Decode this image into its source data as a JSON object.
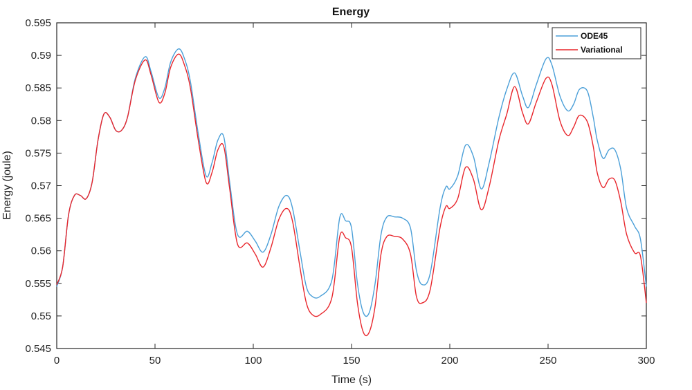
{
  "chart_data": {
    "type": "line",
    "title": "Energy",
    "xlabel": "Time (s)",
    "ylabel": "Energy (joule)",
    "xlim": [
      0,
      300
    ],
    "ylim": [
      0.545,
      0.595
    ],
    "xticks": [
      "0",
      "50",
      "100",
      "150",
      "200",
      "250",
      "300"
    ],
    "yticks": [
      "0.545",
      "0.55",
      "0.555",
      "0.56",
      "0.565",
      "0.57",
      "0.575",
      "0.58",
      "0.585",
      "0.59",
      "0.595"
    ],
    "grid": false,
    "legend_position": "top-right",
    "series": [
      {
        "name": "ODE45",
        "color": "#4a9fd8",
        "x": [
          0,
          3,
          6,
          9,
          12,
          15,
          18,
          21,
          24,
          27,
          30,
          33,
          36,
          40,
          45,
          48,
          52,
          55,
          58,
          62,
          65,
          68,
          72,
          76,
          79,
          82,
          85,
          88,
          92,
          97,
          101,
          105,
          109,
          113,
          117,
          120,
          124,
          127,
          130,
          134,
          140,
          144,
          147,
          150,
          153,
          156,
          159,
          162,
          165,
          168,
          172,
          176,
          180,
          183,
          186,
          190,
          195,
          198,
          200,
          204,
          208,
          212,
          216,
          220,
          225,
          229,
          233,
          237,
          240,
          244,
          249,
          252,
          256,
          260,
          263,
          266,
          270,
          273,
          275,
          278,
          281,
          284,
          287,
          290,
          294,
          297,
          300
        ],
        "y": [
          0.5545,
          0.5575,
          0.5655,
          0.5685,
          0.5685,
          0.568,
          0.5705,
          0.577,
          0.581,
          0.5805,
          0.5785,
          0.5785,
          0.5805,
          0.5865,
          0.5898,
          0.5875,
          0.5835,
          0.585,
          0.589,
          0.591,
          0.5895,
          0.586,
          0.578,
          0.5715,
          0.5735,
          0.577,
          0.5775,
          0.5705,
          0.5625,
          0.563,
          0.5615,
          0.5598,
          0.5625,
          0.5668,
          0.5685,
          0.5665,
          0.5595,
          0.5545,
          0.553,
          0.553,
          0.5555,
          0.5651,
          0.5646,
          0.5635,
          0.555,
          0.5505,
          0.5505,
          0.555,
          0.5625,
          0.5652,
          0.5652,
          0.565,
          0.5635,
          0.557,
          0.5548,
          0.5565,
          0.5665,
          0.5698,
          0.5695,
          0.5715,
          0.5762,
          0.5745,
          0.5695,
          0.5735,
          0.5805,
          0.5848,
          0.5873,
          0.5838,
          0.582,
          0.5855,
          0.5895,
          0.5885,
          0.5838,
          0.5815,
          0.5825,
          0.5848,
          0.5845,
          0.5805,
          0.577,
          0.5742,
          0.5755,
          0.5755,
          0.5725,
          0.5665,
          0.5638,
          0.5618,
          0.5545
        ]
      },
      {
        "name": "Variational",
        "color": "#e8262c",
        "x": [
          0,
          3,
          6,
          9,
          12,
          15,
          18,
          21,
          24,
          27,
          30,
          33,
          36,
          40,
          45,
          48,
          52,
          55,
          58,
          62,
          65,
          68,
          72,
          76,
          79,
          82,
          85,
          88,
          92,
          97,
          101,
          105,
          109,
          113,
          117,
          120,
          124,
          127,
          130,
          134,
          140,
          144,
          147,
          150,
          153,
          156,
          159,
          162,
          165,
          168,
          172,
          176,
          180,
          183,
          186,
          190,
          195,
          198,
          200,
          204,
          208,
          212,
          216,
          220,
          225,
          229,
          233,
          237,
          240,
          244,
          249,
          252,
          256,
          260,
          263,
          266,
          270,
          273,
          275,
          278,
          281,
          284,
          287,
          290,
          294,
          297,
          300
        ],
        "y": [
          0.5548,
          0.5575,
          0.5655,
          0.5685,
          0.5685,
          0.568,
          0.5705,
          0.577,
          0.581,
          0.5805,
          0.5785,
          0.5785,
          0.5805,
          0.5862,
          0.5893,
          0.587,
          0.5828,
          0.5842,
          0.5882,
          0.5902,
          0.5885,
          0.585,
          0.577,
          0.5705,
          0.572,
          0.5755,
          0.576,
          0.5695,
          0.561,
          0.5612,
          0.5595,
          0.5575,
          0.5605,
          0.5648,
          0.5665,
          0.5645,
          0.557,
          0.552,
          0.5502,
          0.5502,
          0.5528,
          0.5622,
          0.562,
          0.5605,
          0.552,
          0.5475,
          0.5475,
          0.5515,
          0.5595,
          0.5622,
          0.5622,
          0.5618,
          0.5595,
          0.553,
          0.552,
          0.554,
          0.5635,
          0.5668,
          0.5665,
          0.568,
          0.5728,
          0.571,
          0.5663,
          0.5698,
          0.577,
          0.581,
          0.5852,
          0.5812,
          0.5795,
          0.5828,
          0.5865,
          0.5855,
          0.58,
          0.5777,
          0.579,
          0.5808,
          0.5798,
          0.576,
          0.572,
          0.5697,
          0.571,
          0.5708,
          0.5675,
          0.5625,
          0.5597,
          0.5592,
          0.552
        ]
      }
    ]
  }
}
